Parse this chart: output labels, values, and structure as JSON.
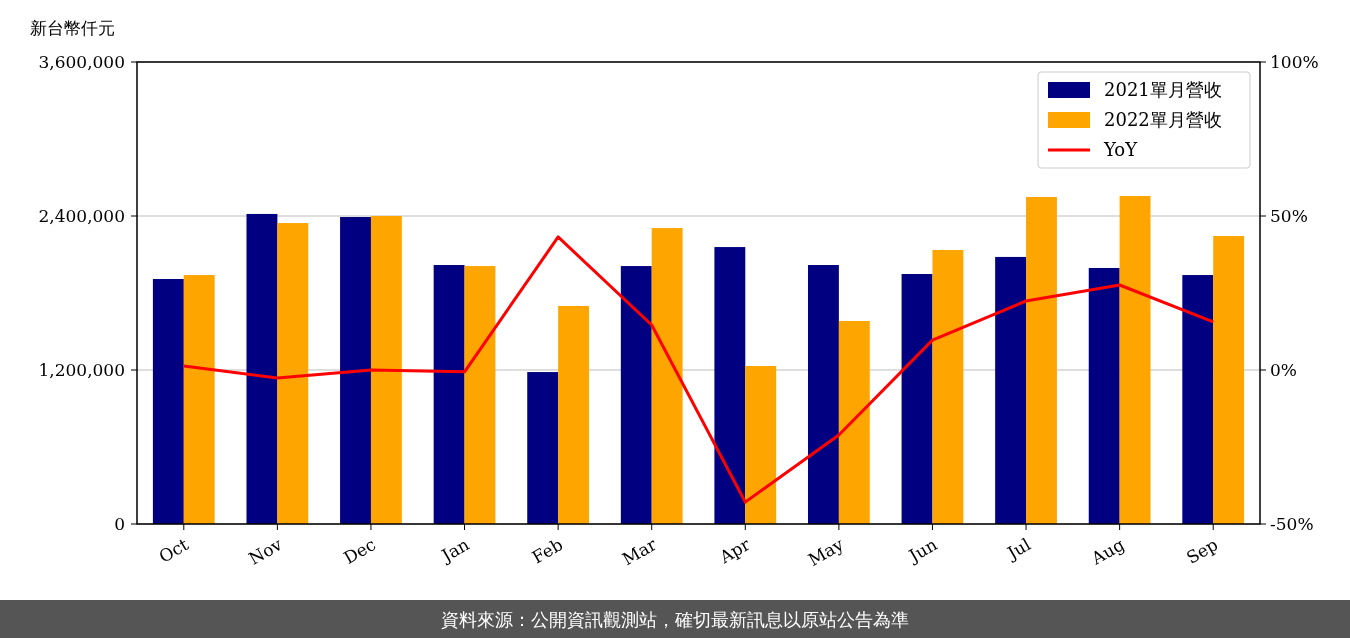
{
  "chart_data": {
    "type": "bar",
    "ylabel": "新台幣仟元",
    "categories": [
      "Oct",
      "Nov",
      "Dec",
      "Jan",
      "Feb",
      "Mar",
      "Apr",
      "May",
      "Jun",
      "Jul",
      "Aug",
      "Sep"
    ],
    "series": [
      {
        "name": "2021單月營收",
        "color": "#000080",
        "values": [
          1909000,
          2416000,
          2392000,
          2018000,
          1184000,
          2010000,
          2158000,
          2018000,
          1948000,
          2081000,
          1995000,
          1940000
        ]
      },
      {
        "name": "2022單月營收",
        "color": "#ffa500",
        "values": [
          1940000,
          2345000,
          2400000,
          2010000,
          1699000,
          2306000,
          1231000,
          1582000,
          2135000,
          2548000,
          2556000,
          2244000
        ]
      },
      {
        "name": "YoY",
        "type": "line",
        "axis": "y2",
        "color": "#ff0000",
        "marker": "none",
        "values": [
          1.3,
          -2.6,
          0,
          -0.6,
          43.2,
          14.6,
          -42.9,
          -21.1,
          9.7,
          22.4,
          27.6,
          15.6
        ]
      }
    ],
    "ylim": [
      0,
      3600000
    ],
    "yticks": [
      {
        "value": 0,
        "label": "0"
      },
      {
        "value": 1200000,
        "label": "1,200,000"
      },
      {
        "value": 2400000,
        "label": "2,400,000"
      },
      {
        "value": 3600000,
        "label": "3,600,000"
      }
    ],
    "y2lim": [
      -50,
      100
    ],
    "y2ticks": [
      {
        "value": -50,
        "label": "-50%"
      },
      {
        "value": 0,
        "label": "0%"
      },
      {
        "value": 50,
        "label": "50%"
      },
      {
        "value": 100,
        "label": "100%"
      }
    ],
    "grid": "y",
    "legend": "top right",
    "annotations": [
      "資料來源：公開資訊觀測站，確切最新訊息以原站公告為準"
    ]
  }
}
